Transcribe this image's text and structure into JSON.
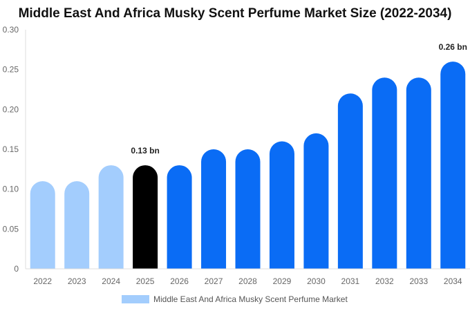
{
  "chart_data": {
    "type": "bar",
    "title": "Middle East And Africa Musky Scent Perfume Market Size (2022-2034)",
    "categories": [
      "2022",
      "2023",
      "2024",
      "2025",
      "2026",
      "2027",
      "2028",
      "2029",
      "2030",
      "2031",
      "2032",
      "2033",
      "2034"
    ],
    "series": [
      {
        "name": "Middle East And Africa Musky Scent Perfume Market",
        "values": [
          0.11,
          0.11,
          0.13,
          0.13,
          0.13,
          0.15,
          0.15,
          0.16,
          0.17,
          0.22,
          0.24,
          0.24,
          0.26
        ]
      }
    ],
    "ylim": [
      0,
      0.3
    ],
    "yticks": [
      "0",
      "0.05",
      "0.10",
      "0.15",
      "0.20",
      "0.25",
      "0.30"
    ],
    "data_labels": [
      {
        "category": "2025",
        "text": "0.13 bn"
      },
      {
        "category": "2034",
        "text": "0.26 bn"
      }
    ],
    "colors": {
      "historical": "#a3cdfd",
      "base_year": "#000000",
      "forecast": "#0a6cf5",
      "legend": "#a3cdfd"
    },
    "bar_colors": [
      "historical",
      "historical",
      "historical",
      "base_year",
      "forecast",
      "forecast",
      "forecast",
      "forecast",
      "forecast",
      "forecast",
      "forecast",
      "forecast",
      "forecast"
    ],
    "grid": false,
    "legend": "bottom-center"
  }
}
